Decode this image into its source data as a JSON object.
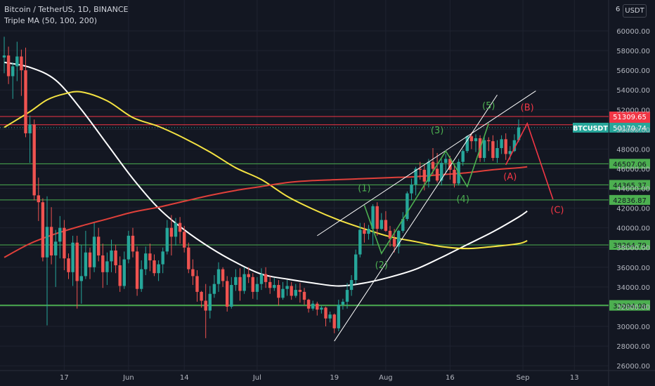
{
  "header": {
    "title": "Bitcoin / TetherUS, 1D, BINANCE",
    "indicator": "Triple MA (50, 100, 200)",
    "currency_button": "USDT",
    "top_cut_label": "6"
  },
  "colors": {
    "background": "#131722",
    "up": "#26a69a",
    "down": "#ef5350",
    "ma50": "#ffffff",
    "ma100": "#f5e342",
    "ma200": "#e0403a",
    "support": "#4caf50",
    "resistance": "#f23645",
    "wave_green": "#4caf50",
    "wave_red": "#f23645",
    "channel": "#ffffff"
  },
  "chart_data": {
    "type": "candlestick",
    "symbol": "BTCUSDT",
    "ylim": [
      25000,
      62000
    ],
    "y_ticks": [
      "26000.00",
      "28000.00",
      "30000.00",
      "32000.00",
      "34000.00",
      "36000.00",
      "38000.00",
      "40000.00",
      "42000.00",
      "44000.00",
      "46000.00",
      "48000.00",
      "50000.00",
      "52000.00",
      "54000.00",
      "56000.00",
      "58000.00",
      "60000.00"
    ],
    "x_ticks": [
      {
        "label": "17",
        "day": 14
      },
      {
        "label": "Jun",
        "day": 29
      },
      {
        "label": "14",
        "day": 42
      },
      {
        "label": "Jul",
        "day": 59
      },
      {
        "label": "19",
        "day": 77
      },
      {
        "label": "Aug",
        "day": 89
      },
      {
        "label": "16",
        "day": 104
      },
      {
        "label": "Sep",
        "day": 121
      },
      {
        "label": "13",
        "day": 133
      }
    ],
    "ohlc": [
      [
        57300,
        59400,
        55700,
        57500
      ],
      [
        57500,
        58400,
        54600,
        55400
      ],
      [
        55400,
        56800,
        53100,
        56400
      ],
      [
        56400,
        58900,
        54900,
        57400
      ],
      [
        57400,
        58100,
        53400,
        56000
      ],
      [
        56000,
        58300,
        49200,
        49600
      ],
      [
        49600,
        51400,
        46600,
        50500
      ],
      [
        50500,
        51000,
        42800,
        43300
      ],
      [
        43300,
        45100,
        40700,
        42600
      ],
      [
        42600,
        43000,
        36600,
        37000
      ],
      [
        37000,
        43200,
        30100,
        40100
      ],
      [
        40100,
        42100,
        36300,
        37200
      ],
      [
        37200,
        39800,
        34000,
        38600
      ],
      [
        38600,
        41200,
        36900,
        40000
      ],
      [
        40000,
        40800,
        35700,
        36900
      ],
      [
        36900,
        37400,
        34800,
        35500
      ],
      [
        35500,
        39200,
        34100,
        38500
      ],
      [
        38500,
        39200,
        31800,
        34600
      ],
      [
        34600,
        38300,
        32300,
        35100
      ],
      [
        35100,
        39700,
        34800,
        37500
      ],
      [
        37500,
        38000,
        34800,
        36000
      ],
      [
        36000,
        40500,
        35500,
        39100
      ],
      [
        39100,
        40000,
        36600,
        37200
      ],
      [
        37200,
        38400,
        33900,
        35500
      ],
      [
        35500,
        37500,
        34200,
        36600
      ],
      [
        36600,
        38800,
        35500,
        37700
      ],
      [
        37700,
        38300,
        35400,
        36200
      ],
      [
        36200,
        37100,
        33500,
        34100
      ],
      [
        34100,
        37600,
        33800,
        36800
      ],
      [
        36800,
        39700,
        36400,
        39200
      ],
      [
        39200,
        40000,
        37000,
        37600
      ],
      [
        37600,
        38100,
        33100,
        33800
      ],
      [
        33800,
        36700,
        33500,
        35800
      ],
      [
        35800,
        38100,
        35200,
        37400
      ],
      [
        37400,
        38400,
        35600,
        36700
      ],
      [
        36700,
        37300,
        35100,
        35400
      ],
      [
        35400,
        36700,
        34600,
        36300
      ],
      [
        36300,
        38000,
        35400,
        37600
      ],
      [
        37600,
        40800,
        37300,
        40000
      ],
      [
        40000,
        41300,
        37200,
        39100
      ],
      [
        39100,
        41000,
        38200,
        40500
      ],
      [
        40500,
        41100,
        38400,
        39600
      ],
      [
        39600,
        40200,
        37500,
        38000
      ],
      [
        38000,
        38500,
        35400,
        35800
      ],
      [
        35800,
        36800,
        34200,
        35100
      ],
      [
        35100,
        35700,
        32500,
        33500
      ],
      [
        33500,
        33600,
        31900,
        32600
      ],
      [
        32600,
        34300,
        28800,
        31600
      ],
      [
        31600,
        34100,
        30800,
        33300
      ],
      [
        33300,
        35200,
        32900,
        34300
      ],
      [
        34300,
        36500,
        33500,
        35800
      ],
      [
        35800,
        36000,
        34000,
        34600
      ],
      [
        34600,
        35100,
        31500,
        32000
      ],
      [
        32000,
        35000,
        31800,
        34200
      ],
      [
        34200,
        35800,
        33600,
        35000
      ],
      [
        35000,
        35900,
        32600,
        33600
      ],
      [
        33600,
        36000,
        33300,
        35300
      ],
      [
        35300,
        36000,
        34400,
        35000
      ],
      [
        35000,
        35400,
        32800,
        33500
      ],
      [
        33500,
        35000,
        32700,
        34300
      ],
      [
        34300,
        35900,
        33700,
        35300
      ],
      [
        35300,
        36000,
        33900,
        34500
      ],
      [
        34500,
        35100,
        33300,
        33900
      ],
      [
        33900,
        34900,
        33600,
        34200
      ],
      [
        34200,
        34700,
        32100,
        32900
      ],
      [
        32900,
        34500,
        32700,
        33800
      ],
      [
        33800,
        34700,
        33100,
        34100
      ],
      [
        34100,
        34500,
        32700,
        33100
      ],
      [
        33100,
        34300,
        32900,
        33700
      ],
      [
        33700,
        34400,
        32400,
        33500
      ],
      [
        33500,
        33900,
        32200,
        32700
      ],
      [
        32700,
        32800,
        31400,
        31800
      ],
      [
        31800,
        32600,
        31600,
        32300
      ],
      [
        32300,
        32500,
        31100,
        31700
      ],
      [
        31700,
        32100,
        31300,
        31900
      ],
      [
        31900,
        32000,
        30000,
        30800
      ],
      [
        30800,
        31500,
        30400,
        31200
      ],
      [
        31200,
        31300,
        29300,
        29800
      ],
      [
        29800,
        32700,
        29500,
        32200
      ],
      [
        32200,
        32800,
        31700,
        32500
      ],
      [
        32500,
        34400,
        31800,
        33700
      ],
      [
        33700,
        35200,
        33100,
        34700
      ],
      [
        34700,
        37800,
        34300,
        37300
      ],
      [
        37300,
        40500,
        37000,
        39800
      ],
      [
        39800,
        40500,
        38500,
        39400
      ],
      [
        39400,
        40300,
        38800,
        39900
      ],
      [
        39900,
        42400,
        38200,
        42200
      ],
      [
        42200,
        42600,
        39200,
        39900
      ],
      [
        39900,
        41500,
        39800,
        40800
      ],
      [
        40800,
        41700,
        39600,
        39700
      ],
      [
        39700,
        40200,
        38100,
        38900
      ],
      [
        38900,
        39900,
        37500,
        38100
      ],
      [
        38100,
        39800,
        37400,
        39700
      ],
      [
        39700,
        41600,
        39500,
        40900
      ],
      [
        40900,
        43700,
        40700,
        43500
      ],
      [
        43500,
        45000,
        42800,
        44400
      ],
      [
        44400,
        46200,
        43300,
        46000
      ],
      [
        46000,
        46700,
        44900,
        45900
      ],
      [
        45900,
        46400,
        43800,
        44700
      ],
      [
        44700,
        47000,
        44100,
        46700
      ],
      [
        46700,
        48100,
        45400,
        46000
      ],
      [
        46000,
        47600,
        44600,
        44800
      ],
      [
        44800,
        47000,
        44300,
        46600
      ],
      [
        46600,
        47500,
        45600,
        47000
      ],
      [
        47000,
        47300,
        44900,
        45900
      ],
      [
        45900,
        46300,
        44100,
        44500
      ],
      [
        44500,
        47000,
        44300,
        46700
      ],
      [
        46700,
        48000,
        46300,
        47800
      ],
      [
        47800,
        49400,
        47600,
        49300
      ],
      [
        49300,
        49700,
        48000,
        48800
      ],
      [
        48800,
        49500,
        47700,
        49100
      ],
      [
        49100,
        49400,
        46700,
        47100
      ],
      [
        47100,
        49200,
        46700,
        48900
      ],
      [
        48900,
        49200,
        47800,
        48800
      ],
      [
        48800,
        49400,
        46800,
        47100
      ],
      [
        47100,
        48900,
        46600,
        48100
      ],
      [
        48100,
        49400,
        47500,
        49000
      ],
      [
        49000,
        49600,
        46900,
        47500
      ],
      [
        47500,
        48300,
        46900,
        47800
      ],
      [
        47800,
        49500,
        47700,
        48900
      ],
      [
        48900,
        51000,
        48700,
        50200
      ]
    ],
    "ma_series": [
      {
        "name": "MA50",
        "values": [
          [
            0,
            56800
          ],
          [
            6,
            56300
          ],
          [
            12,
            55000
          ],
          [
            18,
            52000
          ],
          [
            24,
            48500
          ],
          [
            30,
            45000
          ],
          [
            36,
            42000
          ],
          [
            42,
            39800
          ],
          [
            48,
            38000
          ],
          [
            54,
            36500
          ],
          [
            60,
            35300
          ],
          [
            66,
            34800
          ],
          [
            72,
            34400
          ],
          [
            78,
            34100
          ],
          [
            84,
            34400
          ],
          [
            90,
            35000
          ],
          [
            96,
            35800
          ],
          [
            102,
            37000
          ],
          [
            108,
            38300
          ],
          [
            114,
            39600
          ],
          [
            120,
            41100
          ],
          [
            122,
            41700
          ]
        ]
      },
      {
        "name": "MA100",
        "values": [
          [
            0,
            50200
          ],
          [
            6,
            51800
          ],
          [
            10,
            53000
          ],
          [
            14,
            53600
          ],
          [
            18,
            53800
          ],
          [
            24,
            52900
          ],
          [
            30,
            51200
          ],
          [
            36,
            50300
          ],
          [
            42,
            49100
          ],
          [
            48,
            47700
          ],
          [
            54,
            46100
          ],
          [
            60,
            44900
          ],
          [
            66,
            43200
          ],
          [
            72,
            41900
          ],
          [
            78,
            40800
          ],
          [
            84,
            39900
          ],
          [
            90,
            39100
          ],
          [
            96,
            38600
          ],
          [
            102,
            38100
          ],
          [
            108,
            37900
          ],
          [
            114,
            38100
          ],
          [
            120,
            38400
          ],
          [
            122,
            38700
          ]
        ]
      },
      {
        "name": "MA200",
        "values": [
          [
            0,
            37000
          ],
          [
            6,
            38400
          ],
          [
            12,
            39400
          ],
          [
            18,
            40200
          ],
          [
            24,
            40900
          ],
          [
            30,
            41600
          ],
          [
            36,
            42100
          ],
          [
            42,
            42700
          ],
          [
            48,
            43300
          ],
          [
            54,
            43800
          ],
          [
            60,
            44200
          ],
          [
            66,
            44600
          ],
          [
            72,
            44800
          ],
          [
            78,
            44900
          ],
          [
            84,
            45000
          ],
          [
            90,
            45100
          ],
          [
            96,
            45200
          ],
          [
            102,
            45400
          ],
          [
            108,
            45600
          ],
          [
            114,
            45900
          ],
          [
            120,
            46100
          ],
          [
            122,
            46200
          ]
        ]
      }
    ],
    "horizontal_levels": [
      {
        "price": 51309.65,
        "label": "51309.65",
        "kind": "resistance"
      },
      {
        "price": 50465.95,
        "label": "50465.95",
        "kind": "resistance"
      },
      {
        "price": 50170.74,
        "label": "50170.74",
        "kind": "last_price",
        "tag": "BTCUSDT"
      },
      {
        "price": 46507.06,
        "label": "46507.06",
        "kind": "support"
      },
      {
        "price": 44365.37,
        "label": "44365.37",
        "kind": "support"
      },
      {
        "price": 42836.87,
        "label": "42836.87",
        "kind": "support"
      },
      {
        "price": 38264.79,
        "label": "38264.79",
        "kind": "support"
      },
      {
        "price": 32164.21,
        "label": "32164.21",
        "kind": "support"
      },
      {
        "price": 32094.08,
        "label": "32094.08",
        "kind": "support"
      }
    ],
    "channel_lines": [
      {
        "from": [
          77,
          28500
        ],
        "to": [
          115,
          53500
        ]
      },
      {
        "from": [
          73,
          39200
        ],
        "to": [
          124,
          53900
        ]
      }
    ],
    "wave_lines": [
      {
        "color": "green",
        "points": [
          [
            84,
            42300
          ],
          [
            88,
            37400
          ],
          [
            103,
            47800
          ],
          [
            108,
            44200
          ],
          [
            113,
            50600
          ]
        ]
      },
      {
        "color": "red",
        "points": [
          [
            117,
            46400
          ],
          [
            122,
            50600
          ],
          [
            128,
            42900
          ]
        ]
      }
    ],
    "wave_labels": [
      {
        "text": "(1)",
        "day": 84,
        "price": 43700,
        "color": "green"
      },
      {
        "text": "(2)",
        "day": 88,
        "price": 35900,
        "color": "green"
      },
      {
        "text": "(3)",
        "day": 101,
        "price": 49600,
        "color": "green"
      },
      {
        "text": "(4)",
        "day": 107,
        "price": 42600,
        "color": "green"
      },
      {
        "text": "(5)",
        "day": 113,
        "price": 52100,
        "color": "green"
      },
      {
        "text": "(A)",
        "day": 118,
        "price": 44900,
        "color": "red"
      },
      {
        "text": "(B)",
        "day": 122,
        "price": 51900,
        "color": "red"
      },
      {
        "text": "(C)",
        "day": 129,
        "price": 41500,
        "color": "red"
      }
    ]
  }
}
